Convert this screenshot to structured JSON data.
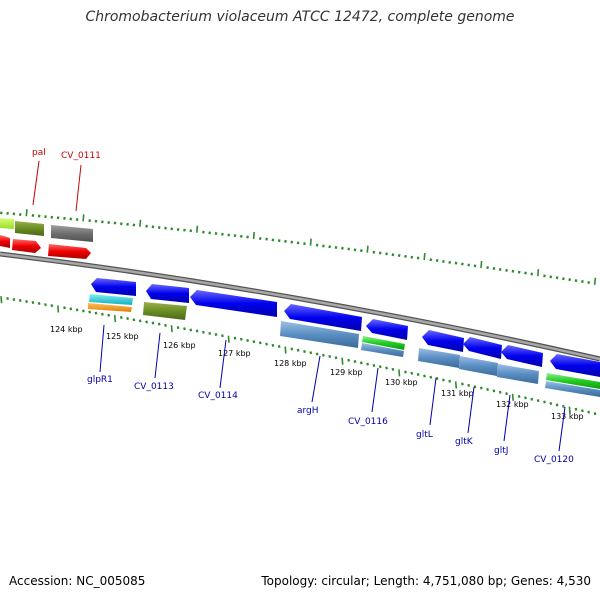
{
  "title": "Chromobacterium violaceum ATCC 12472, complete genome",
  "footer": {
    "accession": "Accession: NC_005085",
    "topology": "Topology: circular; Length: 4,751,080 bp; Genes: 4,530"
  },
  "colors": {
    "backbone": "#8a8a8a",
    "tick": "#2e8b2e",
    "forward_label": "#cc0000",
    "reverse_label": "#0000aa"
  },
  "map": {
    "kbp_labels": [
      "124 kbp",
      "125 kbp",
      "126 kbp",
      "127 kbp",
      "128 kbp",
      "129 kbp",
      "130 kbp",
      "131 kbp",
      "132 kbp",
      "133 kbp"
    ],
    "forward_genes": [
      {
        "label": "pal",
        "color": "red"
      },
      {
        "label": "CV_0111",
        "color": "red"
      }
    ],
    "reverse_genes": [
      {
        "label": "glpR1",
        "color": "blue"
      },
      {
        "label": "CV_0113",
        "color": "blue"
      },
      {
        "label": "CV_0114",
        "color": "blue"
      },
      {
        "label": "argH",
        "color": "blue"
      },
      {
        "label": "CV_0116",
        "color": "blue"
      },
      {
        "label": "gltL",
        "color": "blue"
      },
      {
        "label": "gltK",
        "color": "blue"
      },
      {
        "label": "gltJ",
        "color": "blue"
      },
      {
        "label": "CV_0120",
        "color": "blue"
      }
    ]
  }
}
